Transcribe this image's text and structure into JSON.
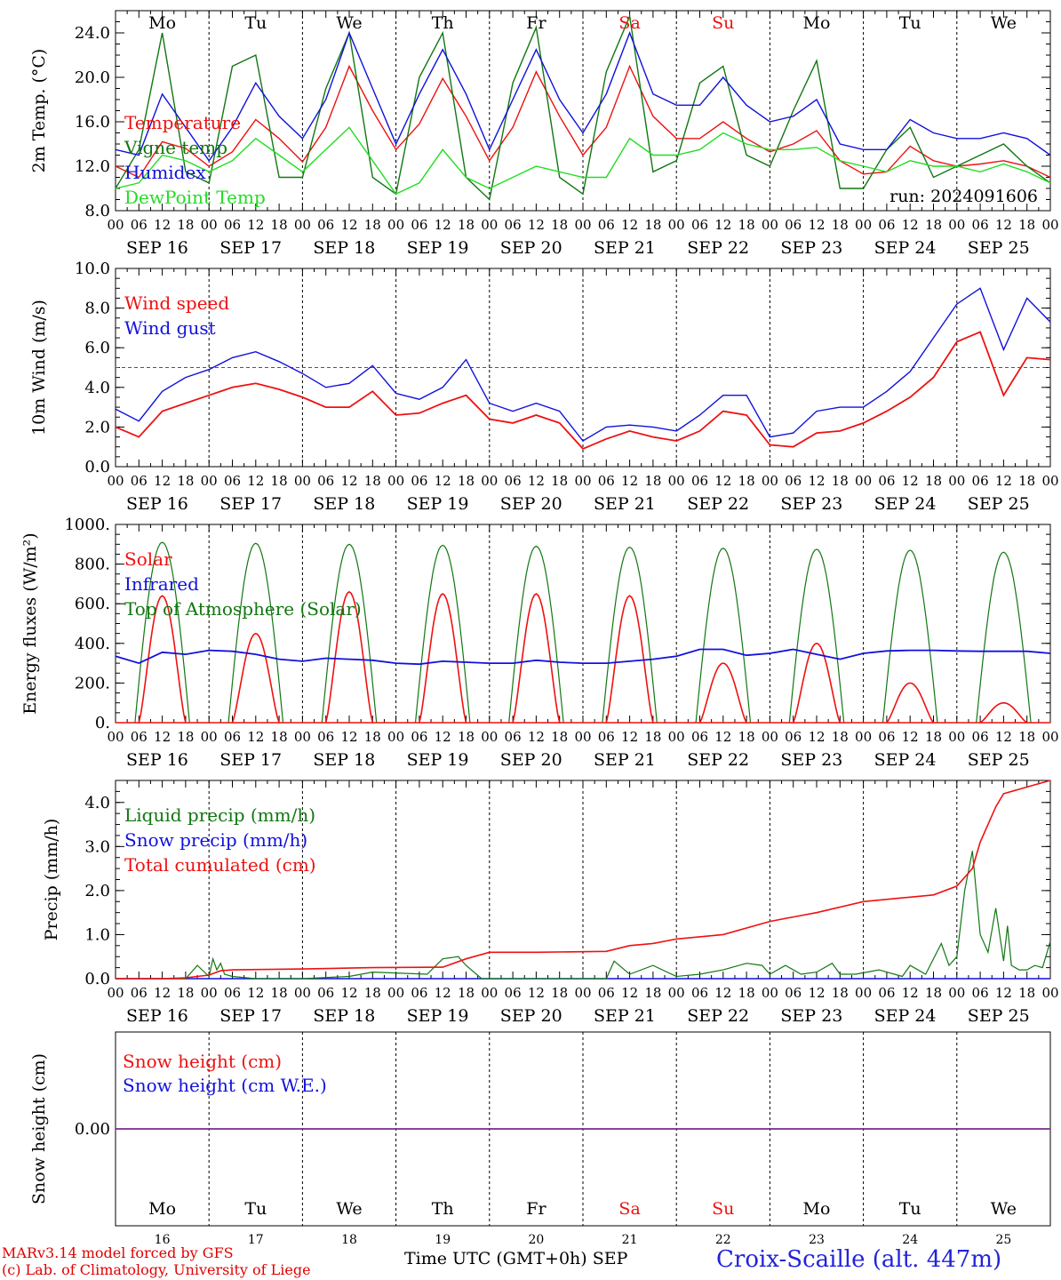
{
  "days": [
    "Mo",
    "Tu",
    "We",
    "Th",
    "Fr",
    "Sa",
    "Su",
    "Mo",
    "Tu",
    "We"
  ],
  "weekend_flags": [
    false,
    false,
    false,
    false,
    false,
    true,
    true,
    false,
    false,
    false
  ],
  "date_labels": [
    "SEP 16",
    "SEP 17",
    "SEP 18",
    "SEP 19",
    "SEP 20",
    "SEP 21",
    "SEP 22",
    "SEP 23",
    "SEP 24",
    "SEP 25"
  ],
  "day_numbers": [
    "16",
    "17",
    "18",
    "19",
    "20",
    "21",
    "22",
    "23",
    "24",
    "25"
  ],
  "hour_ticks": [
    "00",
    "06",
    "12",
    "18"
  ],
  "last_hour_tick": "00",
  "run_label": "run: 2024091606",
  "footer": {
    "model_line": "MARv3.14 model forced by GFS",
    "lab_line": "(c) Lab. of Climatology, University of Liege",
    "time_axis": "Time UTC (GMT+0h) SEP",
    "station": "Croix-Scaille (alt. 447m)"
  },
  "colors": {
    "red": "#ee1111",
    "blue": "#1111dd",
    "green": "#117711",
    "light_green": "#22dd22",
    "weekend": "#ee1111",
    "snow_line": "#7a2a8a"
  },
  "chart_data": [
    {
      "type": "line",
      "ylabel": "2m Temp. (°C)",
      "ylim": [
        8,
        26
      ],
      "yticks": [
        "8.0",
        "12.0",
        "16.0",
        "20.0",
        "24.0"
      ],
      "x_unit": "hours since SEP 16 00 UTC",
      "legend": [
        "Temperature",
        "Vigne temp",
        "Humidex",
        "DewPoint Temp"
      ],
      "series": [
        {
          "name": "Temperature",
          "color": "red",
          "x": [
            0,
            6,
            12,
            18,
            24,
            30,
            36,
            42,
            48,
            54,
            60,
            66,
            72,
            78,
            84,
            90,
            96,
            102,
            108,
            114,
            120,
            126,
            132,
            138,
            144,
            150,
            156,
            162,
            168,
            174,
            180,
            186,
            192,
            198,
            204,
            210,
            216,
            222,
            228,
            234,
            240
          ],
          "y": [
            12.0,
            11.0,
            14.2,
            13.6,
            12.0,
            13.3,
            16.2,
            14.5,
            12.4,
            15.5,
            21.0,
            17.0,
            13.5,
            15.8,
            19.9,
            16.5,
            12.5,
            15.5,
            20.5,
            16.5,
            13.0,
            15.5,
            21.0,
            16.5,
            14.5,
            14.5,
            16.0,
            14.5,
            13.3,
            14.0,
            15.2,
            12.5,
            11.3,
            11.5,
            13.8,
            12.5,
            12.0,
            12.2,
            12.5,
            12.0,
            11.0
          ]
        },
        {
          "name": "Vigne temp",
          "color": "green",
          "x": [
            0,
            6,
            12,
            18,
            24,
            30,
            36,
            42,
            48,
            54,
            60,
            66,
            72,
            78,
            84,
            90,
            96,
            102,
            108,
            114,
            120,
            126,
            132,
            138,
            144,
            150,
            156,
            162,
            168,
            174,
            180,
            186,
            192,
            198,
            204,
            210,
            216,
            222,
            228,
            234,
            240
          ],
          "y": [
            10.0,
            13.5,
            24.0,
            11.5,
            10.5,
            21.0,
            22.0,
            11.0,
            11.0,
            19.0,
            24.0,
            11.0,
            9.5,
            20.0,
            24.0,
            11.0,
            9.0,
            19.5,
            24.5,
            11.0,
            9.5,
            20.5,
            25.5,
            11.5,
            12.5,
            19.5,
            21.0,
            13.0,
            12.0,
            17.0,
            21.5,
            10.0,
            10.0,
            13.5,
            15.5,
            11.0,
            12.0,
            13.0,
            14.0,
            12.0,
            10.5
          ]
        },
        {
          "name": "Humidex",
          "color": "blue",
          "x": [
            0,
            6,
            12,
            18,
            24,
            30,
            36,
            42,
            48,
            54,
            60,
            66,
            72,
            78,
            84,
            90,
            96,
            102,
            108,
            114,
            120,
            126,
            132,
            138,
            144,
            150,
            156,
            162,
            168,
            174,
            180,
            186,
            192,
            198,
            204,
            210,
            216,
            222,
            228,
            234,
            240
          ],
          "y": [
            13.5,
            13.0,
            18.5,
            15.5,
            12.5,
            15.5,
            19.5,
            16.5,
            14.5,
            18.0,
            24.0,
            19.0,
            14.0,
            18.5,
            22.5,
            18.5,
            13.5,
            18.0,
            22.5,
            18.0,
            15.0,
            18.5,
            24.0,
            18.5,
            17.5,
            17.5,
            20.0,
            17.5,
            16.0,
            16.5,
            18.0,
            14.0,
            13.5,
            13.5,
            16.2,
            15.0,
            14.5,
            14.5,
            15.0,
            14.5,
            13.0
          ]
        },
        {
          "name": "DewPoint Temp",
          "color": "light_green",
          "x": [
            0,
            6,
            12,
            18,
            24,
            30,
            36,
            42,
            48,
            54,
            60,
            66,
            72,
            78,
            84,
            90,
            96,
            102,
            108,
            114,
            120,
            126,
            132,
            138,
            144,
            150,
            156,
            162,
            168,
            174,
            180,
            186,
            192,
            198,
            204,
            210,
            216,
            222,
            228,
            234,
            240
          ],
          "y": [
            10.0,
            10.5,
            13.0,
            12.5,
            11.5,
            12.5,
            14.5,
            13.0,
            11.5,
            13.5,
            15.5,
            12.5,
            9.5,
            10.5,
            13.5,
            11.0,
            10.0,
            11.0,
            12.0,
            11.5,
            11.0,
            11.0,
            14.5,
            13.0,
            13.0,
            13.5,
            15.0,
            14.0,
            13.5,
            13.5,
            13.7,
            12.5,
            12.0,
            11.5,
            12.5,
            12.0,
            12.0,
            11.5,
            12.2,
            11.5,
            10.5
          ]
        }
      ]
    },
    {
      "type": "line",
      "ylabel": "10m Wind (m/s)",
      "ylim": [
        0,
        10
      ],
      "yticks": [
        "0.0",
        "2.0",
        "4.0",
        "6.0",
        "8.0",
        "10.0"
      ],
      "reference_line": 5,
      "legend": [
        "Wind speed",
        "Wind gust"
      ],
      "series": [
        {
          "name": "Wind speed",
          "color": "red",
          "x": [
            0,
            6,
            12,
            18,
            24,
            30,
            36,
            42,
            48,
            54,
            60,
            66,
            72,
            78,
            84,
            90,
            96,
            102,
            108,
            114,
            120,
            126,
            132,
            138,
            144,
            150,
            156,
            162,
            168,
            174,
            180,
            186,
            192,
            198,
            204,
            210,
            216,
            222,
            228,
            234,
            240
          ],
          "y": [
            2.0,
            1.5,
            2.8,
            3.2,
            3.6,
            4.0,
            4.2,
            3.9,
            3.5,
            3.0,
            3.0,
            3.8,
            2.6,
            2.7,
            3.2,
            3.6,
            2.4,
            2.2,
            2.6,
            2.2,
            0.9,
            1.4,
            1.8,
            1.5,
            1.3,
            1.8,
            2.8,
            2.6,
            1.1,
            1.0,
            1.7,
            1.8,
            2.2,
            2.8,
            3.5,
            4.5,
            6.3,
            6.8,
            3.6,
            5.5,
            5.4
          ]
        },
        {
          "name": "Wind gust",
          "color": "blue",
          "x": [
            0,
            6,
            12,
            18,
            24,
            30,
            36,
            42,
            48,
            54,
            60,
            66,
            72,
            78,
            84,
            90,
            96,
            102,
            108,
            114,
            120,
            126,
            132,
            138,
            144,
            150,
            156,
            162,
            168,
            174,
            180,
            186,
            192,
            198,
            204,
            210,
            216,
            222,
            228,
            234,
            240
          ],
          "y": [
            2.9,
            2.3,
            3.8,
            4.5,
            4.9,
            5.5,
            5.8,
            5.3,
            4.7,
            4.0,
            4.2,
            5.1,
            3.7,
            3.4,
            4.0,
            5.4,
            3.2,
            2.8,
            3.2,
            2.8,
            1.3,
            2.0,
            2.1,
            2.0,
            1.8,
            2.6,
            3.6,
            3.6,
            1.5,
            1.7,
            2.8,
            3.0,
            3.0,
            3.8,
            4.8,
            6.5,
            8.2,
            9.0,
            5.9,
            8.5,
            7.3
          ]
        }
      ]
    },
    {
      "type": "line",
      "ylabel": "Energy fluxes (W/m²)",
      "ylim": [
        0,
        1000
      ],
      "yticks": [
        "0.",
        "200.",
        "400.",
        "600.",
        "800.",
        "1000."
      ],
      "legend": [
        "Solar",
        "Infrared",
        "Top of Atmosphere (Solar)"
      ],
      "toa_peaks": [
        910,
        905,
        900,
        895,
        890,
        885,
        880,
        875,
        870,
        860
      ],
      "solar_peaks": [
        640,
        450,
        660,
        650,
        650,
        640,
        300,
        400,
        200,
        100
      ],
      "series": [
        {
          "name": "Solar",
          "color": "red"
        },
        {
          "name": "Infrared",
          "color": "blue",
          "x": [
            0,
            6,
            12,
            18,
            24,
            30,
            36,
            42,
            48,
            54,
            60,
            66,
            72,
            78,
            84,
            90,
            96,
            102,
            108,
            114,
            120,
            126,
            132,
            138,
            144,
            150,
            156,
            162,
            168,
            174,
            180,
            186,
            192,
            198,
            204,
            210,
            216,
            222,
            228,
            234,
            240
          ],
          "y": [
            335,
            300,
            355,
            345,
            365,
            360,
            345,
            320,
            310,
            325,
            320,
            315,
            300,
            295,
            310,
            305,
            300,
            300,
            315,
            305,
            300,
            300,
            310,
            320,
            335,
            370,
            370,
            340,
            350,
            370,
            345,
            320,
            350,
            362,
            365,
            365,
            362,
            360,
            360,
            360,
            350
          ]
        },
        {
          "name": "Top of Atmosphere (Solar)",
          "color": "green"
        }
      ]
    },
    {
      "type": "line",
      "ylabel": "Precip (mm/h)",
      "ylim": [
        0,
        4.5
      ],
      "yticks": [
        "0.0",
        "1.0",
        "2.0",
        "3.0",
        "4.0"
      ],
      "legend": [
        "Liquid precip (mm/h)",
        "Snow precip (mm/h)",
        "Total cumulated (cm)"
      ],
      "series": [
        {
          "name": "Total cumulated (cm)",
          "color": "red",
          "x": [
            0,
            12,
            18,
            24,
            27,
            30,
            48,
            60,
            66,
            84,
            90,
            96,
            108,
            126,
            132,
            138,
            144,
            156,
            168,
            174,
            180,
            192,
            204,
            210,
            216,
            220,
            222,
            226,
            228,
            234,
            240
          ],
          "y": [
            0,
            0,
            0.02,
            0.08,
            0.18,
            0.2,
            0.22,
            0.24,
            0.25,
            0.26,
            0.45,
            0.6,
            0.6,
            0.62,
            0.75,
            0.8,
            0.9,
            1.0,
            1.3,
            1.4,
            1.5,
            1.75,
            1.85,
            1.9,
            2.1,
            2.5,
            3.1,
            3.9,
            4.2,
            4.35,
            4.5
          ]
        },
        {
          "name": "Liquid precip (mm/h)",
          "color": "green",
          "x": [
            0,
            18,
            21,
            24,
            25,
            26,
            27,
            28,
            30,
            36,
            48,
            60,
            66,
            80,
            84,
            88,
            90,
            94,
            100,
            108,
            126,
            128,
            132,
            138,
            144,
            150,
            156,
            162,
            166,
            168,
            172,
            176,
            180,
            184,
            186,
            190,
            196,
            202,
            204,
            208,
            212,
            214,
            216,
            218,
            220,
            222,
            224,
            226,
            228,
            229,
            230,
            232,
            234,
            236,
            238,
            240
          ],
          "y": [
            0,
            0,
            0.3,
            0.05,
            0.45,
            0.2,
            0.35,
            0.1,
            0.05,
            0.0,
            0.0,
            0.05,
            0.15,
            0.1,
            0.45,
            0.5,
            0.3,
            0.0,
            0.0,
            0.0,
            0.0,
            0.4,
            0.1,
            0.3,
            0.05,
            0.1,
            0.2,
            0.35,
            0.3,
            0.1,
            0.3,
            0.1,
            0.15,
            0.35,
            0.1,
            0.1,
            0.2,
            0.05,
            0.3,
            0.1,
            0.8,
            0.3,
            0.5,
            2.0,
            2.9,
            1.0,
            0.6,
            1.6,
            0.4,
            1.2,
            0.3,
            0.2,
            0.2,
            0.3,
            0.25,
            0.85
          ]
        },
        {
          "name": "Snow precip (mm/h)",
          "color": "blue",
          "x": [
            0,
            240
          ],
          "y": [
            0,
            0
          ]
        }
      ]
    },
    {
      "type": "line",
      "ylabel": "Snow height (cm)",
      "ytick": "0.00",
      "legend": [
        "Snow height (cm)",
        "Snow height (cm W.E.)"
      ],
      "series": [
        {
          "name": "Snow height (cm)",
          "color": "red",
          "x": [
            0,
            240
          ],
          "y": [
            0,
            0
          ]
        },
        {
          "name": "Snow height (cm W.E.)",
          "color": "blue",
          "x": [
            0,
            240
          ],
          "y": [
            0,
            0
          ]
        }
      ]
    }
  ]
}
